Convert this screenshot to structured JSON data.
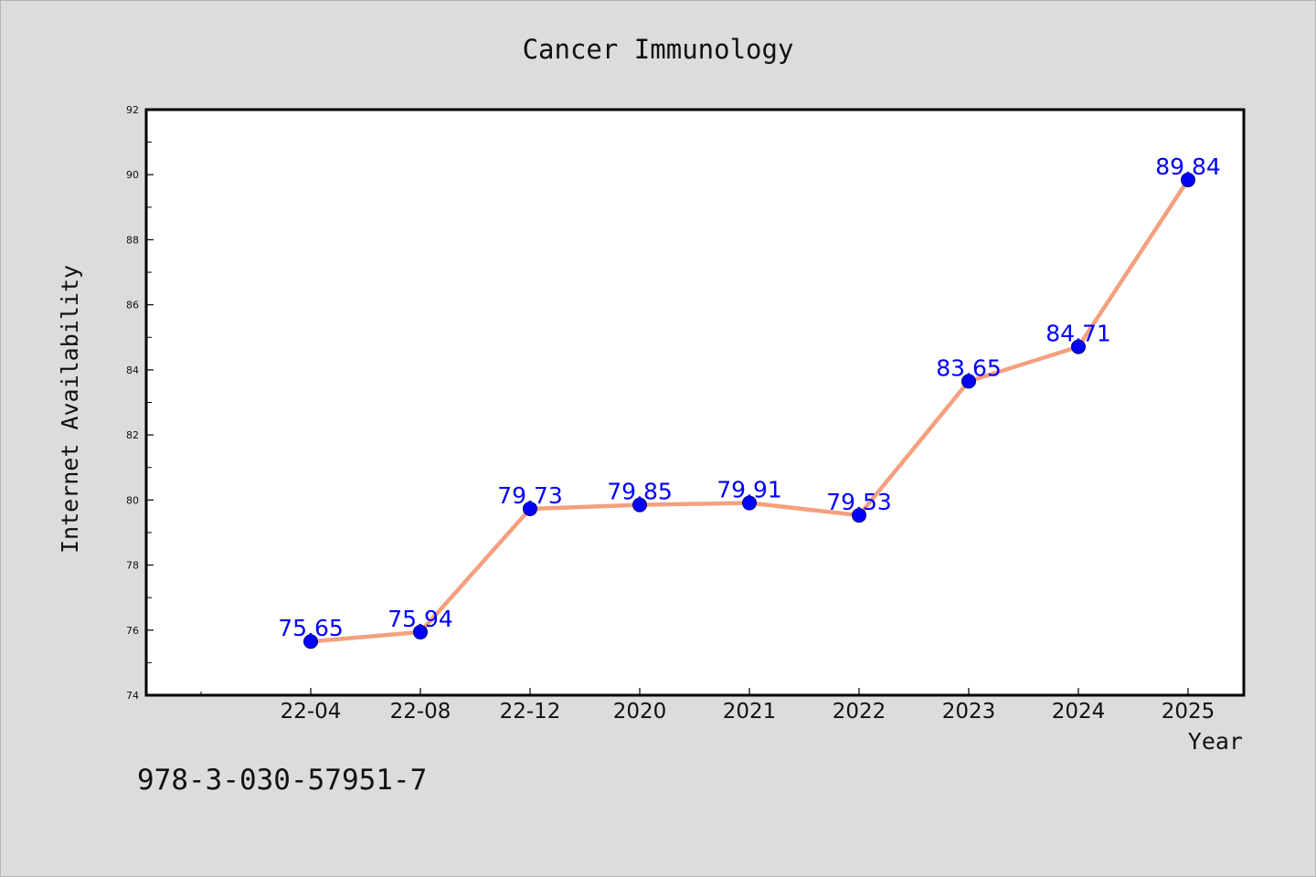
{
  "chart_data": {
    "type": "line",
    "title": "Cancer Immunology",
    "xlabel": "Year",
    "ylabel": "Internet Availability",
    "categories": [
      "22-04",
      "22-08",
      "22-12",
      "2020",
      "2021",
      "2022",
      "2023",
      "2024",
      "2025"
    ],
    "series": [
      {
        "values": [
          75.65,
          75.94,
          79.73,
          79.85,
          79.91,
          79.53,
          83.65,
          84.71,
          89.84
        ],
        "line_color": "#f4a07e",
        "marker_color": "#0000ff"
      }
    ],
    "data_labels": [
      "75.65",
      "75.94",
      "79.73",
      "79.85",
      "79.91",
      "79.53",
      "83.65",
      "84.71",
      "89.84"
    ],
    "ylim": [
      74,
      92
    ],
    "y_ticks": [
      "74",
      "76",
      "78",
      "80",
      "82",
      "84",
      "86",
      "88",
      "90",
      "92"
    ],
    "grid": false,
    "label_color": "#0000ff"
  },
  "footer_note": "978-3-030-57951-7"
}
